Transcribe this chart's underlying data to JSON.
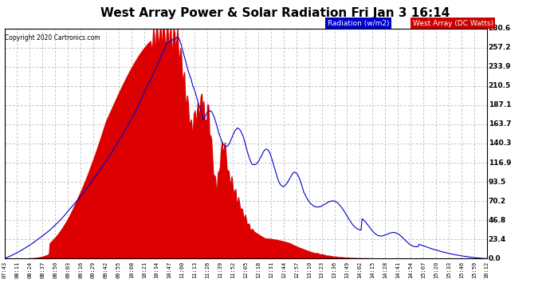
{
  "title": "West Array Power & Solar Radiation Fri Jan 3 16:14",
  "copyright": "Copyright 2020 Cartronics.com",
  "legend_radiation": "Radiation (w/m2)",
  "legend_west": "West Array (DC Watts)",
  "legend_radiation_bg": "#0000cc",
  "legend_west_bg": "#cc0000",
  "y_ticks": [
    0.0,
    23.4,
    46.8,
    70.2,
    93.5,
    116.9,
    140.3,
    163.7,
    187.1,
    210.5,
    233.9,
    257.2,
    280.6
  ],
  "y_max": 280.6,
  "background_color": "#ffffff",
  "plot_bg": "#ffffff",
  "grid_color": "#aaaaaa",
  "fill_color": "#dd0000",
  "line_color": "#0000cc",
  "x_labels": [
    "07:43",
    "08:11",
    "08:24",
    "08:37",
    "08:50",
    "09:03",
    "09:16",
    "09:29",
    "09:42",
    "09:55",
    "10:08",
    "10:21",
    "10:34",
    "10:47",
    "11:00",
    "11:13",
    "11:26",
    "11:39",
    "11:52",
    "12:05",
    "12:18",
    "12:31",
    "12:44",
    "12:57",
    "13:10",
    "13:23",
    "13:36",
    "13:49",
    "14:02",
    "14:15",
    "14:28",
    "14:41",
    "14:54",
    "15:07",
    "15:20",
    "15:33",
    "15:46",
    "15:59",
    "16:12"
  ]
}
